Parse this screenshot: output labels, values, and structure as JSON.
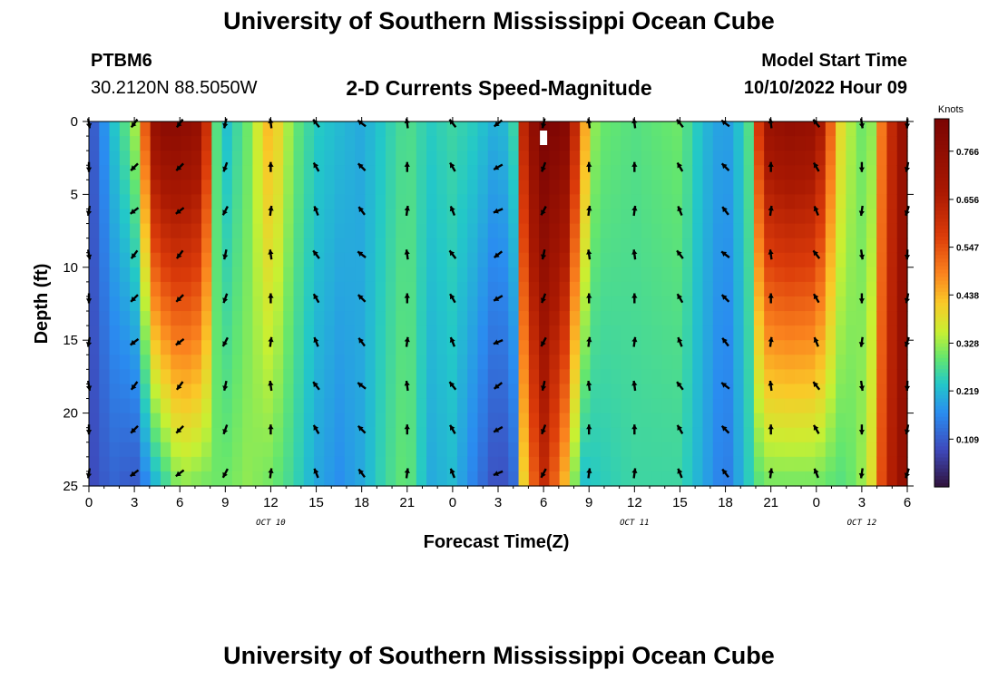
{
  "header": {
    "title": "University of Southern Mississippi Ocean Cube",
    "station": "PTBM6",
    "coords": "30.2120N  88.5050W",
    "subtitle": "2-D Currents Speed-Magnitude",
    "model_start_label": "Model Start Time",
    "model_start_value": "10/10/2022 Hour 09"
  },
  "footer": {
    "title": "University of Southern Mississippi Ocean Cube"
  },
  "chart_data": {
    "type": "heatmap",
    "title": "2-D Currents Speed-Magnitude",
    "xlabel": "Forecast Time(Z)",
    "ylabel": "Depth (ft)",
    "x_hours_range": [
      0,
      54
    ],
    "ylim": [
      0,
      25
    ],
    "y_ticks": [
      "0",
      "5",
      "10",
      "15",
      "20",
      "25"
    ],
    "x_ticks": [
      "0",
      "3",
      "6",
      "9",
      "12",
      "15",
      "18",
      "21",
      "0",
      "3",
      "6",
      "9",
      "12",
      "15",
      "18",
      "21",
      "0",
      "3",
      "6"
    ],
    "day_labels": [
      {
        "label": "OCT 10",
        "hour": 12
      },
      {
        "label": "OCT 11",
        "hour": 36
      },
      {
        "label": "OCT 12",
        "hour": 51
      }
    ],
    "colorbar": {
      "unit": "Knots",
      "min": 0.0,
      "max": 0.84,
      "ticks": [
        "0.766",
        "0.656",
        "0.547",
        "0.438",
        "0.328",
        "0.219",
        "0.109"
      ],
      "tick_values": [
        0.766,
        0.656,
        0.547,
        0.438,
        0.328,
        0.219,
        0.109
      ]
    },
    "profiles": [
      {
        "hour": 0,
        "surface": 0.08,
        "bottom": 0.08
      },
      {
        "hour": 1.5,
        "surface": 0.22,
        "bottom": 0.12
      },
      {
        "hour": 3,
        "surface": 0.32,
        "bottom": 0.1
      },
      {
        "hour": 4.5,
        "surface": 0.78,
        "bottom": 0.22
      },
      {
        "hour": 6,
        "surface": 0.78,
        "bottom": 0.32
      },
      {
        "hour": 7.5,
        "surface": 0.74,
        "bottom": 0.3
      },
      {
        "hour": 8.5,
        "surface": 0.25,
        "bottom": 0.3
      },
      {
        "hour": 9,
        "surface": 0.22,
        "bottom": 0.3
      },
      {
        "hour": 10.5,
        "surface": 0.3,
        "bottom": 0.32
      },
      {
        "hour": 12,
        "surface": 0.45,
        "bottom": 0.3
      },
      {
        "hour": 13.5,
        "surface": 0.3,
        "bottom": 0.26
      },
      {
        "hour": 15,
        "surface": 0.24,
        "bottom": 0.2
      },
      {
        "hour": 16.5,
        "surface": 0.22,
        "bottom": 0.17
      },
      {
        "hour": 18,
        "surface": 0.2,
        "bottom": 0.2
      },
      {
        "hour": 19.5,
        "surface": 0.24,
        "bottom": 0.26
      },
      {
        "hour": 21,
        "surface": 0.28,
        "bottom": 0.3
      },
      {
        "hour": 22.5,
        "surface": 0.24,
        "bottom": 0.2
      },
      {
        "hour": 24,
        "surface": 0.26,
        "bottom": 0.22
      },
      {
        "hour": 25.5,
        "surface": 0.24,
        "bottom": 0.15
      },
      {
        "hour": 27,
        "surface": 0.2,
        "bottom": 0.08
      },
      {
        "hour": 28,
        "surface": 0.25,
        "bottom": 0.12
      },
      {
        "hour": 28.8,
        "surface": 0.7,
        "bottom": 0.45
      },
      {
        "hour": 30,
        "surface": 0.84,
        "bottom": 0.62
      },
      {
        "hour": 31.5,
        "surface": 0.8,
        "bottom": 0.42
      },
      {
        "hour": 32.5,
        "surface": 0.5,
        "bottom": 0.22
      },
      {
        "hour": 33.5,
        "surface": 0.3,
        "bottom": 0.24
      },
      {
        "hour": 36,
        "surface": 0.28,
        "bottom": 0.26
      },
      {
        "hour": 39,
        "surface": 0.3,
        "bottom": 0.26
      },
      {
        "hour": 40.5,
        "surface": 0.22,
        "bottom": 0.2
      },
      {
        "hour": 42,
        "surface": 0.18,
        "bottom": 0.14
      },
      {
        "hour": 43.5,
        "surface": 0.26,
        "bottom": 0.24
      },
      {
        "hour": 44.5,
        "surface": 0.72,
        "bottom": 0.3
      },
      {
        "hour": 46,
        "surface": 0.76,
        "bottom": 0.3
      },
      {
        "hour": 48,
        "surface": 0.74,
        "bottom": 0.3
      },
      {
        "hour": 49.5,
        "surface": 0.4,
        "bottom": 0.28
      },
      {
        "hour": 50.5,
        "surface": 0.32,
        "bottom": 0.3
      },
      {
        "hour": 51.5,
        "surface": 0.28,
        "bottom": 0.35
      },
      {
        "hour": 52.5,
        "surface": 0.55,
        "bottom": 0.6
      },
      {
        "hour": 54,
        "surface": 0.78,
        "bottom": 0.78
      }
    ],
    "arrow_columns_hours": [
      0,
      3,
      6,
      9,
      12,
      15,
      18,
      21,
      24,
      27,
      30,
      33,
      36,
      39,
      42,
      45,
      48,
      51,
      54
    ],
    "arrow_rows_depth": [
      0,
      3,
      6,
      9,
      12,
      15,
      18,
      21,
      24
    ],
    "arrow_direction_deg_by_column": [
      180,
      225,
      225,
      200,
      0,
      330,
      315,
      0,
      330,
      240,
      200,
      0,
      0,
      330,
      315,
      0,
      330,
      180,
      190
    ]
  }
}
